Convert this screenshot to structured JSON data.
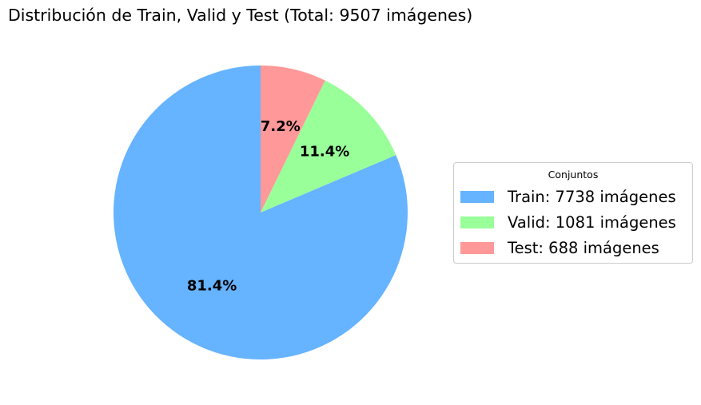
{
  "chart_data": {
    "type": "pie",
    "title": "Distribución de Train, Valid y Test (Total: 9507 imágenes)",
    "start_angle_deg": 90,
    "direction": "counterclockwise",
    "slices": [
      {
        "label": "Train",
        "value": 7738,
        "pct_label": "81.4%",
        "color": "#66b3ff"
      },
      {
        "label": "Valid",
        "value": 1081,
        "pct_label": "11.4%",
        "color": "#99ff99"
      },
      {
        "label": "Test",
        "value": 688,
        "pct_label": "7.2%",
        "color": "#ff9999"
      }
    ],
    "legend": {
      "title": "Conjuntos",
      "placement": "right",
      "entries": [
        "Train: 7738 imágenes",
        "Valid: 1081 imágenes",
        "Test: 688 imágenes"
      ]
    }
  }
}
